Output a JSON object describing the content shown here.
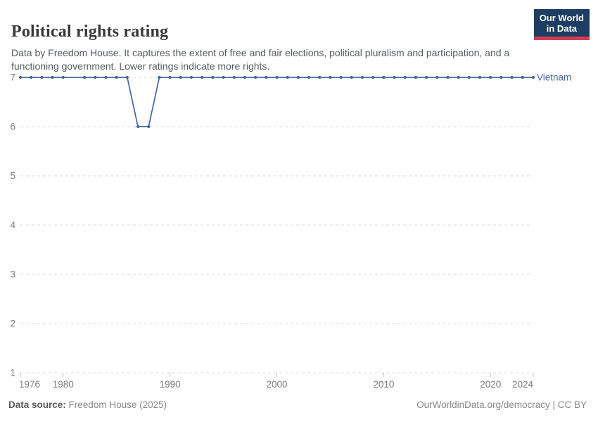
{
  "header": {
    "title": "Political rights rating",
    "subtitle": "Data by Freedom House. It captures the extent of free and fair elections, political pluralism and participation, and a functioning government. Lower ratings indicate more rights.",
    "logo": {
      "line1": "Our World",
      "line2": "in Data"
    }
  },
  "chart_data": {
    "type": "line",
    "title": "Political rights rating",
    "xlim": [
      1976,
      2024
    ],
    "ylim": [
      1,
      7
    ],
    "xticks": [
      1976,
      1980,
      1990,
      2000,
      2010,
      2020,
      2024
    ],
    "yticks": [
      1,
      2,
      3,
      4,
      5,
      6,
      7
    ],
    "grid": "horizontal-dashed",
    "legend_position": "label-at-line-end",
    "missing_marker_years": [
      1981
    ],
    "series": [
      {
        "name": "Vietnam",
        "color": "#4465a1",
        "points": [
          [
            1976,
            7
          ],
          [
            1977,
            7
          ],
          [
            1978,
            7
          ],
          [
            1979,
            7
          ],
          [
            1980,
            7
          ],
          [
            1982,
            7
          ],
          [
            1983,
            7
          ],
          [
            1984,
            7
          ],
          [
            1985,
            7
          ],
          [
            1986,
            7
          ],
          [
            1987,
            6
          ],
          [
            1988,
            6
          ],
          [
            1989,
            7
          ],
          [
            1990,
            7
          ],
          [
            1991,
            7
          ],
          [
            1992,
            7
          ],
          [
            1993,
            7
          ],
          [
            1994,
            7
          ],
          [
            1995,
            7
          ],
          [
            1996,
            7
          ],
          [
            1997,
            7
          ],
          [
            1998,
            7
          ],
          [
            1999,
            7
          ],
          [
            2000,
            7
          ],
          [
            2001,
            7
          ],
          [
            2002,
            7
          ],
          [
            2003,
            7
          ],
          [
            2004,
            7
          ],
          [
            2005,
            7
          ],
          [
            2006,
            7
          ],
          [
            2007,
            7
          ],
          [
            2008,
            7
          ],
          [
            2009,
            7
          ],
          [
            2010,
            7
          ],
          [
            2011,
            7
          ],
          [
            2012,
            7
          ],
          [
            2013,
            7
          ],
          [
            2014,
            7
          ],
          [
            2015,
            7
          ],
          [
            2016,
            7
          ],
          [
            2017,
            7
          ],
          [
            2018,
            7
          ],
          [
            2019,
            7
          ],
          [
            2020,
            7
          ],
          [
            2021,
            7
          ],
          [
            2022,
            7
          ],
          [
            2023,
            7
          ],
          [
            2024,
            7
          ]
        ]
      }
    ]
  },
  "colors": {
    "series_blue": "#4465a1",
    "logo_bg": "#1d3d63",
    "logo_accent": "#d23d52",
    "grid": "#d9d9d9",
    "axis_text": "#7b7b7b",
    "title_text": "#383838",
    "subtitle_text": "#555a5f"
  },
  "footer": {
    "source_label": "Data source:",
    "source_value": "Freedom House (2025)",
    "attribution": "OurWorldinData.org/democracy | CC BY"
  }
}
